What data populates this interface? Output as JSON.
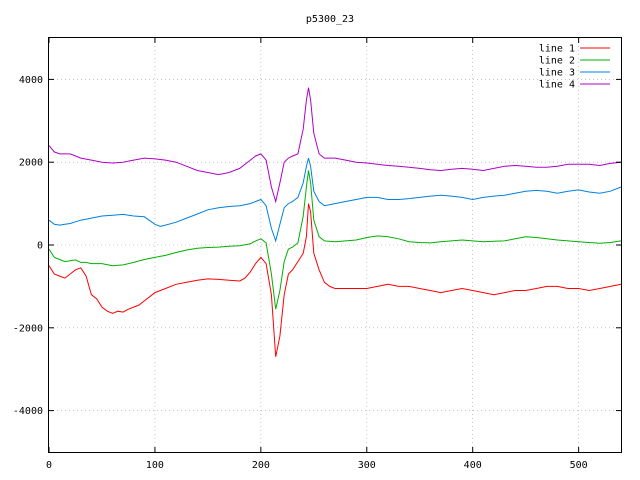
{
  "chart_data": {
    "type": "line",
    "title": "p5300_23",
    "xlabel": "",
    "ylabel": "",
    "xlim": [
      0,
      540
    ],
    "ylim": [
      -5000,
      5000
    ],
    "xticks": [
      0,
      100,
      200,
      300,
      400,
      500
    ],
    "yticks": [
      -4000,
      -2000,
      0,
      2000,
      4000
    ],
    "grid": true,
    "legend_position": "top-right",
    "series": [
      {
        "name": "line 1",
        "color": "#ff0000",
        "points": [
          [
            0,
            -500
          ],
          [
            5,
            -700
          ],
          [
            10,
            -750
          ],
          [
            15,
            -800
          ],
          [
            20,
            -700
          ],
          [
            25,
            -600
          ],
          [
            30,
            -550
          ],
          [
            35,
            -750
          ],
          [
            40,
            -1200
          ],
          [
            45,
            -1300
          ],
          [
            50,
            -1500
          ],
          [
            55,
            -1600
          ],
          [
            60,
            -1650
          ],
          [
            65,
            -1600
          ],
          [
            70,
            -1620
          ],
          [
            75,
            -1550
          ],
          [
            80,
            -1500
          ],
          [
            85,
            -1450
          ],
          [
            90,
            -1350
          ],
          [
            95,
            -1250
          ],
          [
            100,
            -1150
          ],
          [
            110,
            -1050
          ],
          [
            120,
            -950
          ],
          [
            130,
            -900
          ],
          [
            140,
            -850
          ],
          [
            150,
            -820
          ],
          [
            160,
            -830
          ],
          [
            170,
            -850
          ],
          [
            180,
            -870
          ],
          [
            185,
            -800
          ],
          [
            190,
            -650
          ],
          [
            195,
            -450
          ],
          [
            200,
            -300
          ],
          [
            205,
            -450
          ],
          [
            210,
            -1200
          ],
          [
            214,
            -2700
          ],
          [
            218,
            -2200
          ],
          [
            222,
            -1200
          ],
          [
            226,
            -700
          ],
          [
            230,
            -600
          ],
          [
            235,
            -400
          ],
          [
            240,
            -200
          ],
          [
            243,
            200
          ],
          [
            245,
            1000
          ],
          [
            247,
            800
          ],
          [
            250,
            -200
          ],
          [
            255,
            -600
          ],
          [
            260,
            -900
          ],
          [
            265,
            -1000
          ],
          [
            270,
            -1050
          ],
          [
            280,
            -1050
          ],
          [
            290,
            -1050
          ],
          [
            300,
            -1050
          ],
          [
            310,
            -1000
          ],
          [
            320,
            -950
          ],
          [
            330,
            -1000
          ],
          [
            340,
            -1000
          ],
          [
            350,
            -1050
          ],
          [
            360,
            -1100
          ],
          [
            370,
            -1150
          ],
          [
            380,
            -1100
          ],
          [
            390,
            -1050
          ],
          [
            400,
            -1100
          ],
          [
            410,
            -1150
          ],
          [
            420,
            -1200
          ],
          [
            430,
            -1150
          ],
          [
            440,
            -1100
          ],
          [
            450,
            -1100
          ],
          [
            460,
            -1050
          ],
          [
            470,
            -1000
          ],
          [
            480,
            -1000
          ],
          [
            490,
            -1050
          ],
          [
            500,
            -1050
          ],
          [
            510,
            -1100
          ],
          [
            520,
            -1050
          ],
          [
            530,
            -1000
          ],
          [
            540,
            -950
          ]
        ]
      },
      {
        "name": "line 2",
        "color": "#00b000",
        "points": [
          [
            0,
            -100
          ],
          [
            5,
            -300
          ],
          [
            10,
            -350
          ],
          [
            15,
            -400
          ],
          [
            20,
            -380
          ],
          [
            25,
            -360
          ],
          [
            30,
            -420
          ],
          [
            35,
            -420
          ],
          [
            40,
            -450
          ],
          [
            50,
            -450
          ],
          [
            60,
            -500
          ],
          [
            70,
            -480
          ],
          [
            80,
            -420
          ],
          [
            90,
            -350
          ],
          [
            100,
            -300
          ],
          [
            110,
            -250
          ],
          [
            120,
            -180
          ],
          [
            130,
            -120
          ],
          [
            140,
            -80
          ],
          [
            150,
            -60
          ],
          [
            160,
            -50
          ],
          [
            170,
            -30
          ],
          [
            180,
            -20
          ],
          [
            190,
            30
          ],
          [
            195,
            100
          ],
          [
            200,
            150
          ],
          [
            205,
            50
          ],
          [
            210,
            -700
          ],
          [
            214,
            -1550
          ],
          [
            218,
            -1100
          ],
          [
            222,
            -400
          ],
          [
            226,
            -100
          ],
          [
            230,
            -50
          ],
          [
            235,
            50
          ],
          [
            240,
            700
          ],
          [
            243,
            1400
          ],
          [
            245,
            1800
          ],
          [
            247,
            1500
          ],
          [
            250,
            600
          ],
          [
            255,
            200
          ],
          [
            260,
            100
          ],
          [
            270,
            80
          ],
          [
            280,
            100
          ],
          [
            290,
            120
          ],
          [
            300,
            180
          ],
          [
            310,
            220
          ],
          [
            320,
            200
          ],
          [
            330,
            150
          ],
          [
            340,
            80
          ],
          [
            350,
            60
          ],
          [
            360,
            50
          ],
          [
            370,
            80
          ],
          [
            380,
            100
          ],
          [
            390,
            120
          ],
          [
            400,
            100
          ],
          [
            410,
            80
          ],
          [
            420,
            90
          ],
          [
            430,
            100
          ],
          [
            440,
            150
          ],
          [
            450,
            200
          ],
          [
            460,
            180
          ],
          [
            470,
            150
          ],
          [
            480,
            120
          ],
          [
            490,
            100
          ],
          [
            500,
            80
          ],
          [
            510,
            60
          ],
          [
            520,
            40
          ],
          [
            530,
            60
          ],
          [
            540,
            100
          ]
        ]
      },
      {
        "name": "line 3",
        "color": "#0080e0",
        "points": [
          [
            0,
            600
          ],
          [
            5,
            500
          ],
          [
            10,
            480
          ],
          [
            15,
            500
          ],
          [
            20,
            520
          ],
          [
            25,
            560
          ],
          [
            30,
            600
          ],
          [
            40,
            650
          ],
          [
            50,
            700
          ],
          [
            60,
            720
          ],
          [
            70,
            740
          ],
          [
            80,
            700
          ],
          [
            90,
            680
          ],
          [
            100,
            500
          ],
          [
            105,
            450
          ],
          [
            110,
            480
          ],
          [
            120,
            550
          ],
          [
            130,
            650
          ],
          [
            140,
            750
          ],
          [
            150,
            850
          ],
          [
            160,
            900
          ],
          [
            170,
            930
          ],
          [
            180,
            950
          ],
          [
            190,
            1000
          ],
          [
            195,
            1050
          ],
          [
            200,
            1100
          ],
          [
            205,
            950
          ],
          [
            210,
            400
          ],
          [
            214,
            100
          ],
          [
            218,
            500
          ],
          [
            222,
            900
          ],
          [
            226,
            1000
          ],
          [
            230,
            1050
          ],
          [
            235,
            1150
          ],
          [
            240,
            1500
          ],
          [
            243,
            1900
          ],
          [
            245,
            2100
          ],
          [
            247,
            1900
          ],
          [
            250,
            1300
          ],
          [
            255,
            1050
          ],
          [
            260,
            950
          ],
          [
            270,
            1000
          ],
          [
            280,
            1050
          ],
          [
            290,
            1100
          ],
          [
            300,
            1150
          ],
          [
            310,
            1150
          ],
          [
            320,
            1100
          ],
          [
            330,
            1100
          ],
          [
            340,
            1120
          ],
          [
            350,
            1150
          ],
          [
            360,
            1180
          ],
          [
            370,
            1200
          ],
          [
            380,
            1180
          ],
          [
            390,
            1150
          ],
          [
            400,
            1100
          ],
          [
            410,
            1150
          ],
          [
            420,
            1180
          ],
          [
            430,
            1200
          ],
          [
            440,
            1250
          ],
          [
            450,
            1300
          ],
          [
            460,
            1320
          ],
          [
            470,
            1300
          ],
          [
            480,
            1250
          ],
          [
            490,
            1300
          ],
          [
            500,
            1330
          ],
          [
            510,
            1280
          ],
          [
            520,
            1250
          ],
          [
            530,
            1300
          ],
          [
            540,
            1400
          ]
        ]
      },
      {
        "name": "line 4",
        "color": "#b000c8",
        "points": [
          [
            0,
            2400
          ],
          [
            5,
            2250
          ],
          [
            10,
            2200
          ],
          [
            15,
            2200
          ],
          [
            20,
            2200
          ],
          [
            25,
            2150
          ],
          [
            30,
            2100
          ],
          [
            40,
            2050
          ],
          [
            50,
            2000
          ],
          [
            60,
            1980
          ],
          [
            70,
            2000
          ],
          [
            80,
            2050
          ],
          [
            90,
            2100
          ],
          [
            100,
            2080
          ],
          [
            110,
            2050
          ],
          [
            120,
            2000
          ],
          [
            130,
            1900
          ],
          [
            140,
            1800
          ],
          [
            150,
            1750
          ],
          [
            160,
            1700
          ],
          [
            170,
            1750
          ],
          [
            180,
            1850
          ],
          [
            190,
            2050
          ],
          [
            195,
            2150
          ],
          [
            200,
            2200
          ],
          [
            205,
            2050
          ],
          [
            210,
            1400
          ],
          [
            214,
            1050
          ],
          [
            218,
            1500
          ],
          [
            222,
            2000
          ],
          [
            226,
            2100
          ],
          [
            230,
            2150
          ],
          [
            235,
            2200
          ],
          [
            240,
            2800
          ],
          [
            243,
            3500
          ],
          [
            245,
            3800
          ],
          [
            247,
            3500
          ],
          [
            250,
            2700
          ],
          [
            255,
            2200
          ],
          [
            260,
            2100
          ],
          [
            270,
            2100
          ],
          [
            280,
            2050
          ],
          [
            290,
            2000
          ],
          [
            300,
            1980
          ],
          [
            310,
            1950
          ],
          [
            320,
            1920
          ],
          [
            330,
            1900
          ],
          [
            340,
            1880
          ],
          [
            350,
            1850
          ],
          [
            360,
            1820
          ],
          [
            370,
            1800
          ],
          [
            380,
            1830
          ],
          [
            390,
            1850
          ],
          [
            400,
            1830
          ],
          [
            410,
            1800
          ],
          [
            420,
            1850
          ],
          [
            430,
            1900
          ],
          [
            440,
            1920
          ],
          [
            450,
            1900
          ],
          [
            460,
            1880
          ],
          [
            470,
            1880
          ],
          [
            480,
            1900
          ],
          [
            490,
            1950
          ],
          [
            500,
            1950
          ],
          [
            510,
            1950
          ],
          [
            520,
            1920
          ],
          [
            530,
            1970
          ],
          [
            540,
            2000
          ]
        ]
      }
    ]
  }
}
